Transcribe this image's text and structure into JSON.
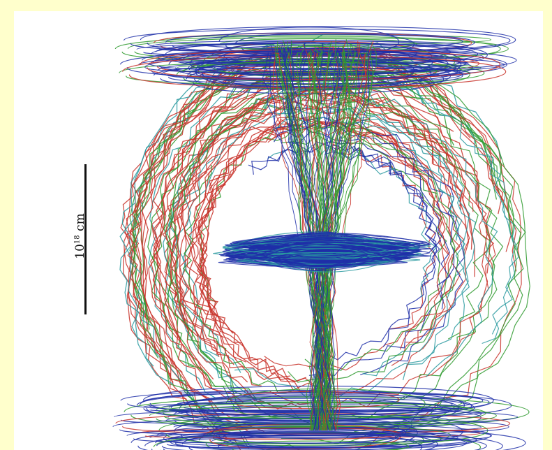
{
  "figure": {
    "scale_bar": {
      "base": "10",
      "exponent": "18",
      "unit": "cm"
    },
    "colors": {
      "background": "#ffffcc",
      "panel": "#ffffff",
      "line_blue": "#1f2fa8",
      "line_green": "#2e9a2e",
      "line_red": "#c8332a",
      "line_cyan": "#2a9aa0"
    }
  }
}
